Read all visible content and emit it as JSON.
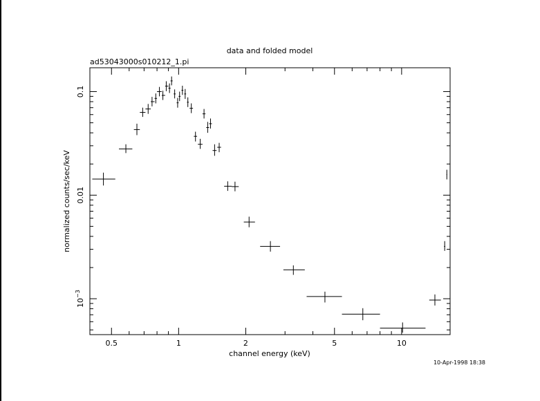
{
  "chart_data": {
    "type": "scatter",
    "title": "data and folded model",
    "subtitle": "ad53043000s010212_1.pi",
    "xlabel": "channel energy (keV)",
    "ylabel": "normalized counts/sec/keV",
    "x_scale": "log",
    "y_scale": "log",
    "xlim": [
      0.4,
      16.5
    ],
    "ylim": [
      0.00045,
      0.17
    ],
    "grid": false,
    "legend": "none",
    "x_ticks": [
      {
        "value": 0.5,
        "label": "0.5"
      },
      {
        "value": 1,
        "label": "1"
      },
      {
        "value": 2,
        "label": "2"
      },
      {
        "value": 5,
        "label": "5"
      },
      {
        "value": 10,
        "label": "10"
      }
    ],
    "y_ticks": [
      {
        "value": 0.1,
        "label": "0.1"
      },
      {
        "value": 0.01,
        "label": "0.01"
      },
      {
        "value": 0.001,
        "label_base": "10",
        "label_exp": "−3"
      }
    ],
    "timestamp": "10-Apr-1998 18:38",
    "series": [
      {
        "points": [
          {
            "x": 0.46,
            "y": 0.0143,
            "xlo": 0.41,
            "xhi": 0.52,
            "ylo": 0.0124,
            "yhi": 0.0165
          },
          {
            "x": 0.58,
            "y": 0.028,
            "xlo": 0.54,
            "xhi": 0.62,
            "ylo": 0.0255,
            "yhi": 0.031
          },
          {
            "x": 0.65,
            "y": 0.043,
            "xlo": 0.63,
            "xhi": 0.67,
            "ylo": 0.038,
            "yhi": 0.049
          },
          {
            "x": 0.69,
            "y": 0.063,
            "xlo": 0.67,
            "xhi": 0.71,
            "ylo": 0.057,
            "yhi": 0.07
          },
          {
            "x": 0.73,
            "y": 0.068,
            "xlo": 0.71,
            "xhi": 0.75,
            "ylo": 0.061,
            "yhi": 0.076
          },
          {
            "x": 0.76,
            "y": 0.08,
            "xlo": 0.75,
            "xhi": 0.78,
            "ylo": 0.072,
            "yhi": 0.089
          },
          {
            "x": 0.79,
            "y": 0.086,
            "xlo": 0.78,
            "xhi": 0.8,
            "ylo": 0.077,
            "yhi": 0.096
          },
          {
            "x": 0.82,
            "y": 0.1,
            "xlo": 0.8,
            "xhi": 0.84,
            "ylo": 0.09,
            "yhi": 0.111
          },
          {
            "x": 0.85,
            "y": 0.092,
            "xlo": 0.84,
            "xhi": 0.87,
            "ylo": 0.083,
            "yhi": 0.102
          },
          {
            "x": 0.88,
            "y": 0.113,
            "xlo": 0.87,
            "xhi": 0.9,
            "ylo": 0.101,
            "yhi": 0.126
          },
          {
            "x": 0.91,
            "y": 0.108,
            "xlo": 0.9,
            "xhi": 0.92,
            "ylo": 0.097,
            "yhi": 0.12
          },
          {
            "x": 0.93,
            "y": 0.127,
            "xlo": 0.92,
            "xhi": 0.94,
            "ylo": 0.115,
            "yhi": 0.14
          },
          {
            "x": 0.96,
            "y": 0.095,
            "xlo": 0.95,
            "xhi": 0.97,
            "ylo": 0.086,
            "yhi": 0.105
          },
          {
            "x": 0.99,
            "y": 0.078,
            "xlo": 0.98,
            "xhi": 1.0,
            "ylo": 0.07,
            "yhi": 0.087
          },
          {
            "x": 1.01,
            "y": 0.09,
            "xlo": 1.0,
            "xhi": 1.02,
            "ylo": 0.081,
            "yhi": 0.1
          },
          {
            "x": 1.04,
            "y": 0.103,
            "xlo": 1.03,
            "xhi": 1.05,
            "ylo": 0.093,
            "yhi": 0.114
          },
          {
            "x": 1.07,
            "y": 0.095,
            "xlo": 1.06,
            "xhi": 1.08,
            "ylo": 0.085,
            "yhi": 0.106
          },
          {
            "x": 1.1,
            "y": 0.079,
            "xlo": 1.09,
            "xhi": 1.11,
            "ylo": 0.071,
            "yhi": 0.088
          },
          {
            "x": 1.14,
            "y": 0.069,
            "xlo": 1.12,
            "xhi": 1.16,
            "ylo": 0.062,
            "yhi": 0.077
          },
          {
            "x": 1.19,
            "y": 0.037,
            "xlo": 1.17,
            "xhi": 1.21,
            "ylo": 0.033,
            "yhi": 0.041
          },
          {
            "x": 1.25,
            "y": 0.031,
            "xlo": 1.22,
            "xhi": 1.28,
            "ylo": 0.028,
            "yhi": 0.035
          },
          {
            "x": 1.3,
            "y": 0.061,
            "xlo": 1.28,
            "xhi": 1.32,
            "ylo": 0.055,
            "yhi": 0.068
          },
          {
            "x": 1.35,
            "y": 0.045,
            "xlo": 1.33,
            "xhi": 1.37,
            "ylo": 0.04,
            "yhi": 0.051
          },
          {
            "x": 1.39,
            "y": 0.049,
            "xlo": 1.37,
            "xhi": 1.41,
            "ylo": 0.044,
            "yhi": 0.055
          },
          {
            "x": 1.45,
            "y": 0.027,
            "xlo": 1.42,
            "xhi": 1.48,
            "ylo": 0.024,
            "yhi": 0.031
          },
          {
            "x": 1.52,
            "y": 0.029,
            "xlo": 1.49,
            "xhi": 1.55,
            "ylo": 0.026,
            "yhi": 0.032
          },
          {
            "x": 1.66,
            "y": 0.0122,
            "xlo": 1.6,
            "xhi": 1.73,
            "ylo": 0.011,
            "yhi": 0.0136
          },
          {
            "x": 1.79,
            "y": 0.0121,
            "xlo": 1.73,
            "xhi": 1.86,
            "ylo": 0.0109,
            "yhi": 0.0135
          },
          {
            "x": 2.07,
            "y": 0.0055,
            "xlo": 1.96,
            "xhi": 2.2,
            "ylo": 0.0049,
            "yhi": 0.0062
          },
          {
            "x": 2.58,
            "y": 0.0032,
            "xlo": 2.32,
            "xhi": 2.85,
            "ylo": 0.00285,
            "yhi": 0.0036
          },
          {
            "x": 3.27,
            "y": 0.0019,
            "xlo": 2.95,
            "xhi": 3.68,
            "ylo": 0.0017,
            "yhi": 0.0021
          },
          {
            "x": 4.53,
            "y": 0.00105,
            "xlo": 3.75,
            "xhi": 5.4,
            "ylo": 0.00092,
            "yhi": 0.00117
          },
          {
            "x": 6.7,
            "y": 0.00071,
            "xlo": 5.4,
            "xhi": 8.0,
            "ylo": 0.00062,
            "yhi": 0.00081
          },
          {
            "x": 10.1,
            "y": 0.00052,
            "xlo": 8.0,
            "xhi": 12.8,
            "ylo": 0.00047,
            "yhi": 0.00059
          },
          {
            "x": 14.1,
            "y": 0.00097,
            "xlo": 13.3,
            "xhi": 15.0,
            "ylo": 0.00086,
            "yhi": 0.0011
          },
          {
            "x": 15.6,
            "y": 0.0032,
            "xlo": 15.5,
            "xhi": 15.7,
            "ylo": 0.0029,
            "yhi": 0.0036
          },
          {
            "x": 15.95,
            "y": 0.0158,
            "xlo": 15.9,
            "xhi": 16.0,
            "ylo": 0.0142,
            "yhi": 0.0176
          }
        ]
      }
    ]
  }
}
